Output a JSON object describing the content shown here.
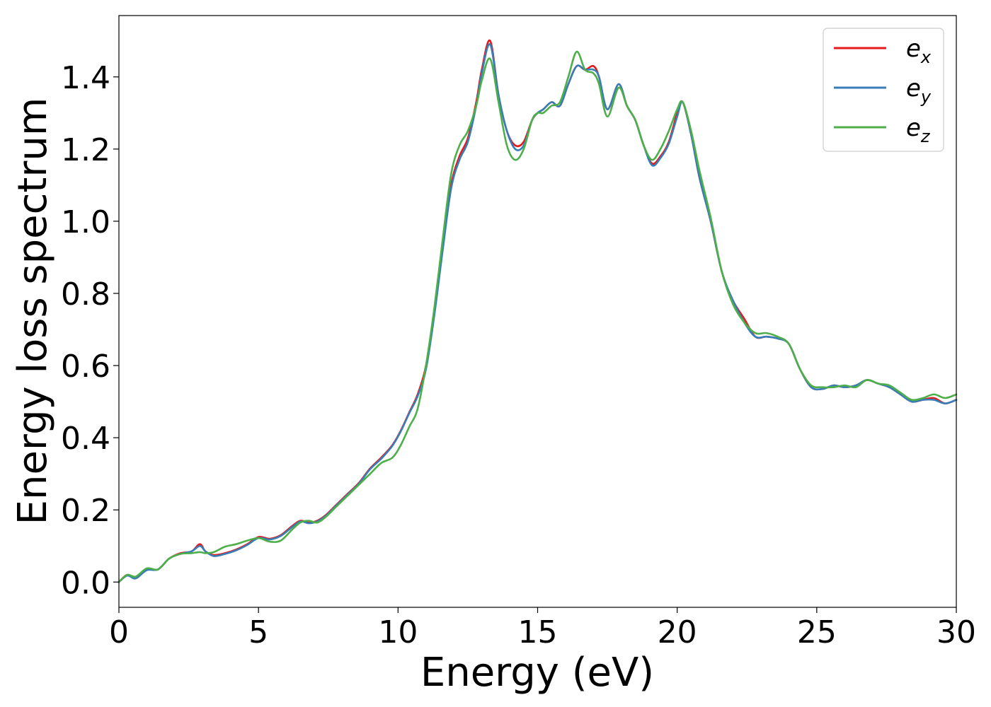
{
  "chart_data": {
    "type": "line",
    "title": "",
    "xlabel": "Energy (eV)",
    "ylabel": "Energy loss spectrum",
    "xlim": [
      0,
      30
    ],
    "ylim": [
      -0.07,
      1.57
    ],
    "xticks": [
      0,
      5,
      10,
      15,
      20,
      25,
      30
    ],
    "yticks": [
      "0.0",
      "0.2",
      "0.4",
      "0.6",
      "0.8",
      "1.0",
      "1.2",
      "1.4"
    ],
    "yticks_values": [
      0.0,
      0.2,
      0.4,
      0.6,
      0.8,
      1.0,
      1.2,
      1.4
    ],
    "grid": false,
    "legend_position": "top-right",
    "series": [
      {
        "name": "e_x",
        "label_base": "e",
        "label_sub": "x",
        "color": "#e41a1c",
        "x": [
          0,
          0.3,
          0.6,
          1.0,
          1.4,
          1.8,
          2.2,
          2.6,
          2.9,
          3.1,
          3.4,
          3.8,
          4.2,
          4.6,
          5.0,
          5.4,
          5.8,
          6.2,
          6.5,
          6.8,
          7.1,
          7.4,
          7.8,
          8.2,
          8.6,
          9.0,
          9.4,
          9.8,
          10.1,
          10.4,
          10.7,
          11.0,
          11.3,
          11.6,
          11.9,
          12.2,
          12.5,
          12.8,
          13.0,
          13.3,
          13.6,
          13.9,
          14.2,
          14.5,
          14.8,
          15.0,
          15.2,
          15.5,
          15.8,
          16.1,
          16.4,
          16.7,
          17.0,
          17.2,
          17.5,
          17.9,
          18.2,
          18.5,
          18.8,
          19.1,
          19.4,
          19.7,
          20.0,
          20.2,
          20.5,
          20.8,
          21.2,
          21.6,
          22.0,
          22.4,
          22.8,
          23.2,
          23.6,
          24.0,
          24.4,
          24.8,
          25.2,
          25.6,
          26.0,
          26.4,
          26.8,
          27.2,
          27.6,
          28.0,
          28.4,
          28.8,
          29.2,
          29.6,
          30.0
        ],
        "y": [
          0.0,
          0.02,
          0.01,
          0.035,
          0.035,
          0.065,
          0.08,
          0.085,
          0.105,
          0.085,
          0.075,
          0.08,
          0.09,
          0.105,
          0.125,
          0.12,
          0.13,
          0.155,
          0.17,
          0.165,
          0.17,
          0.185,
          0.215,
          0.245,
          0.275,
          0.315,
          0.345,
          0.38,
          0.42,
          0.47,
          0.52,
          0.6,
          0.75,
          0.93,
          1.1,
          1.18,
          1.23,
          1.33,
          1.42,
          1.5,
          1.35,
          1.25,
          1.21,
          1.22,
          1.28,
          1.3,
          1.31,
          1.33,
          1.32,
          1.38,
          1.43,
          1.42,
          1.43,
          1.4,
          1.31,
          1.38,
          1.32,
          1.28,
          1.21,
          1.16,
          1.18,
          1.22,
          1.3,
          1.33,
          1.24,
          1.12,
          1.0,
          0.86,
          0.78,
          0.73,
          0.68,
          0.68,
          0.675,
          0.66,
          0.59,
          0.54,
          0.535,
          0.545,
          0.54,
          0.545,
          0.56,
          0.55,
          0.54,
          0.52,
          0.5,
          0.505,
          0.51,
          0.495,
          0.505
        ]
      },
      {
        "name": "e_y",
        "label_base": "e",
        "label_sub": "y",
        "color": "#377eb8",
        "x": [
          0,
          0.3,
          0.6,
          1.0,
          1.4,
          1.8,
          2.2,
          2.6,
          2.9,
          3.1,
          3.4,
          3.8,
          4.2,
          4.6,
          5.0,
          5.4,
          5.8,
          6.2,
          6.5,
          6.8,
          7.1,
          7.4,
          7.8,
          8.2,
          8.6,
          9.0,
          9.4,
          9.8,
          10.1,
          10.4,
          10.7,
          11.0,
          11.3,
          11.6,
          11.9,
          12.2,
          12.5,
          12.8,
          13.0,
          13.3,
          13.6,
          13.9,
          14.2,
          14.5,
          14.8,
          15.0,
          15.2,
          15.5,
          15.8,
          16.1,
          16.4,
          16.7,
          17.0,
          17.2,
          17.5,
          17.9,
          18.2,
          18.5,
          18.8,
          19.1,
          19.4,
          19.7,
          20.0,
          20.2,
          20.5,
          20.8,
          21.2,
          21.6,
          22.0,
          22.4,
          22.8,
          23.2,
          23.6,
          24.0,
          24.4,
          24.8,
          25.2,
          25.6,
          26.0,
          26.4,
          26.8,
          27.2,
          27.6,
          28.0,
          28.4,
          28.8,
          29.2,
          29.6,
          30.0
        ],
        "y": [
          0.0,
          0.018,
          0.01,
          0.033,
          0.035,
          0.065,
          0.078,
          0.085,
          0.1,
          0.085,
          0.072,
          0.078,
          0.088,
          0.103,
          0.122,
          0.118,
          0.128,
          0.152,
          0.168,
          0.163,
          0.168,
          0.183,
          0.213,
          0.243,
          0.273,
          0.313,
          0.342,
          0.378,
          0.418,
          0.468,
          0.515,
          0.59,
          0.74,
          0.92,
          1.09,
          1.17,
          1.22,
          1.32,
          1.41,
          1.49,
          1.35,
          1.25,
          1.2,
          1.21,
          1.28,
          1.3,
          1.31,
          1.33,
          1.32,
          1.38,
          1.43,
          1.42,
          1.42,
          1.4,
          1.31,
          1.38,
          1.32,
          1.28,
          1.21,
          1.155,
          1.175,
          1.215,
          1.29,
          1.33,
          1.24,
          1.12,
          1.0,
          0.86,
          0.78,
          0.72,
          0.68,
          0.68,
          0.675,
          0.66,
          0.59,
          0.54,
          0.535,
          0.545,
          0.54,
          0.545,
          0.56,
          0.55,
          0.54,
          0.52,
          0.5,
          0.505,
          0.505,
          0.495,
          0.505
        ]
      },
      {
        "name": "e_z",
        "label_base": "e",
        "label_sub": "z",
        "color": "#4daf4a",
        "x": [
          0,
          0.3,
          0.6,
          1.0,
          1.4,
          1.8,
          2.2,
          2.6,
          2.9,
          3.1,
          3.4,
          3.8,
          4.2,
          4.6,
          5.0,
          5.4,
          5.8,
          6.2,
          6.5,
          6.8,
          7.1,
          7.4,
          7.8,
          8.2,
          8.6,
          9.0,
          9.4,
          9.8,
          10.1,
          10.4,
          10.7,
          11.0,
          11.3,
          11.6,
          11.9,
          12.2,
          12.5,
          12.8,
          13.0,
          13.3,
          13.6,
          13.9,
          14.2,
          14.5,
          14.8,
          15.0,
          15.2,
          15.5,
          15.8,
          16.1,
          16.4,
          16.7,
          17.0,
          17.2,
          17.5,
          17.9,
          18.2,
          18.5,
          18.8,
          19.1,
          19.4,
          19.7,
          20.0,
          20.2,
          20.5,
          20.8,
          21.2,
          21.6,
          22.0,
          22.4,
          22.8,
          23.2,
          23.6,
          24.0,
          24.4,
          24.8,
          25.2,
          25.6,
          26.0,
          26.4,
          26.8,
          27.2,
          27.6,
          28.0,
          28.4,
          28.8,
          29.2,
          29.6,
          30.0
        ],
        "y": [
          0.0,
          0.02,
          0.015,
          0.038,
          0.035,
          0.065,
          0.078,
          0.08,
          0.083,
          0.08,
          0.083,
          0.098,
          0.105,
          0.115,
          0.122,
          0.112,
          0.115,
          0.145,
          0.165,
          0.17,
          0.165,
          0.18,
          0.21,
          0.24,
          0.27,
          0.3,
          0.33,
          0.345,
          0.38,
          0.43,
          0.48,
          0.6,
          0.76,
          0.95,
          1.13,
          1.21,
          1.25,
          1.32,
          1.39,
          1.45,
          1.33,
          1.21,
          1.17,
          1.2,
          1.28,
          1.3,
          1.3,
          1.32,
          1.33,
          1.4,
          1.47,
          1.42,
          1.41,
          1.38,
          1.29,
          1.37,
          1.32,
          1.28,
          1.21,
          1.17,
          1.2,
          1.25,
          1.31,
          1.33,
          1.25,
          1.14,
          1.01,
          0.86,
          0.77,
          0.72,
          0.69,
          0.69,
          0.68,
          0.66,
          0.59,
          0.545,
          0.54,
          0.54,
          0.545,
          0.54,
          0.56,
          0.55,
          0.545,
          0.525,
          0.505,
          0.51,
          0.52,
          0.51,
          0.52
        ]
      }
    ]
  }
}
